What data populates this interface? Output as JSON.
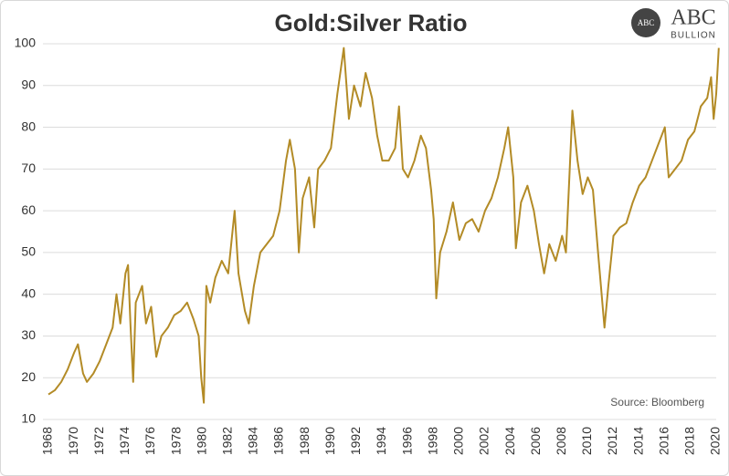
{
  "chart_data": {
    "type": "line",
    "title": "Gold:Silver Ratio",
    "annotation": "Source: Bloomberg",
    "logo": {
      "badge": "ABC",
      "name": "ABC",
      "sub": "BULLION"
    },
    "color": "#b38b26",
    "grid": true,
    "xlim": [
      1968,
      2020
    ],
    "xticks": [
      1968,
      1970,
      1972,
      1974,
      1976,
      1978,
      1980,
      1982,
      1984,
      1986,
      1988,
      1990,
      1992,
      1994,
      1996,
      1998,
      2000,
      2002,
      2004,
      2006,
      2008,
      2010,
      2012,
      2014,
      2016,
      2018,
      2020
    ],
    "ylim": [
      10,
      100
    ],
    "yticks": [
      10,
      20,
      30,
      40,
      50,
      60,
      70,
      80,
      90,
      100
    ],
    "x": [
      1968,
      1968.5,
      1969,
      1969.5,
      1970,
      1970.3,
      1970.7,
      1971,
      1971.5,
      1972,
      1972.5,
      1973,
      1973.3,
      1973.6,
      1974,
      1974.2,
      1974.4,
      1974.6,
      1974.8,
      1975.3,
      1975.6,
      1976,
      1976.4,
      1976.8,
      1977.3,
      1977.8,
      1978.3,
      1978.8,
      1979.3,
      1979.7,
      1979.9,
      1980.1,
      1980.3,
      1980.6,
      1981,
      1981.5,
      1982,
      1982.5,
      1982.8,
      1983.3,
      1983.6,
      1984,
      1984.5,
      1985,
      1985.5,
      1986,
      1986.5,
      1986.8,
      1987.2,
      1987.5,
      1987.8,
      1988.3,
      1988.7,
      1989,
      1989.5,
      1990,
      1990.5,
      1991,
      1991.4,
      1991.8,
      1992.3,
      1992.7,
      1993.2,
      1993.6,
      1994,
      1994.5,
      1995,
      1995.3,
      1995.6,
      1996,
      1996.5,
      1997,
      1997.4,
      1997.8,
      1998,
      1998.2,
      1998.5,
      1999,
      1999.5,
      2000,
      2000.5,
      2001,
      2001.5,
      2002,
      2002.5,
      2003,
      2003.5,
      2003.8,
      2004.2,
      2004.4,
      2004.8,
      2005.3,
      2005.8,
      2006.2,
      2006.6,
      2007,
      2007.5,
      2008,
      2008.3,
      2008.8,
      2009.2,
      2009.6,
      2010,
      2010.4,
      2010.8,
      2011.3,
      2011.6,
      2012,
      2012.5,
      2013,
      2013.5,
      2014,
      2014.5,
      2015,
      2015.5,
      2016,
      2016.3,
      2016.8,
      2017.3,
      2017.8,
      2018.3,
      2018.8,
      2019.3,
      2019.6,
      2019.8,
      2020,
      2020.2
    ],
    "values": [
      16,
      17,
      19,
      22,
      26,
      28,
      21,
      19,
      21,
      24,
      28,
      32,
      40,
      33,
      45,
      47,
      32,
      19,
      38,
      42,
      33,
      37,
      25,
      30,
      32,
      35,
      36,
      38,
      34,
      30,
      20,
      14,
      42,
      38,
      44,
      48,
      45,
      60,
      45,
      36,
      33,
      42,
      50,
      52,
      54,
      60,
      72,
      77,
      70,
      50,
      63,
      68,
      56,
      70,
      72,
      75,
      88,
      99,
      82,
      90,
      85,
      93,
      87,
      78,
      72,
      72,
      75,
      85,
      70,
      68,
      72,
      78,
      75,
      65,
      58,
      39,
      50,
      55,
      62,
      53,
      57,
      58,
      55,
      60,
      63,
      68,
      75,
      80,
      68,
      51,
      62,
      66,
      60,
      52,
      45,
      52,
      48,
      54,
      50,
      84,
      72,
      64,
      68,
      65,
      50,
      32,
      42,
      54,
      56,
      57,
      62,
      66,
      68,
      72,
      76,
      80,
      68,
      70,
      72,
      77,
      79,
      85,
      87,
      92,
      82,
      88,
      99
    ]
  }
}
